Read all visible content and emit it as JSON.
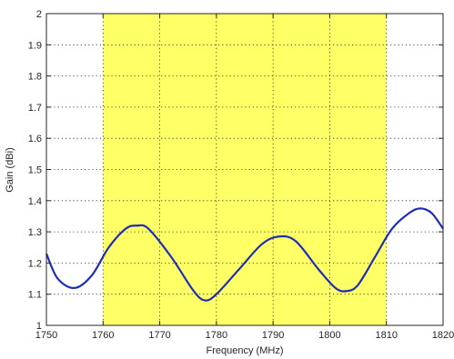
{
  "chart_data": {
    "type": "line",
    "title": "",
    "xlabel": "Frequency (MHz)",
    "ylabel": "Gain (dBi)",
    "xlim": [
      1750,
      1820
    ],
    "ylim": [
      1,
      2
    ],
    "xticks": [
      "1750",
      "1760",
      "1770",
      "1780",
      "1790",
      "1800",
      "1810",
      "1820"
    ],
    "yticks": [
      "1",
      "1.1",
      "1.2",
      "1.3",
      "1.4",
      "1.5",
      "1.6",
      "1.7",
      "1.8",
      "1.9",
      "2"
    ],
    "grid": true,
    "highlight_band": {
      "x": [
        1760,
        1810
      ],
      "color": "#ffff66"
    },
    "series": [
      {
        "color": "#1f2fb5",
        "x": [
          1750,
          1752,
          1755,
          1758,
          1761,
          1764,
          1766,
          1768,
          1772,
          1776,
          1778,
          1780,
          1784,
          1788,
          1791,
          1794,
          1798,
          1801,
          1803,
          1805,
          1808,
          1811,
          1814,
          1816,
          1818,
          1820
        ],
        "y": [
          1.23,
          1.15,
          1.12,
          1.16,
          1.25,
          1.31,
          1.32,
          1.31,
          1.22,
          1.11,
          1.08,
          1.1,
          1.18,
          1.26,
          1.285,
          1.27,
          1.18,
          1.12,
          1.11,
          1.13,
          1.22,
          1.31,
          1.36,
          1.375,
          1.36,
          1.31
        ]
      }
    ]
  }
}
